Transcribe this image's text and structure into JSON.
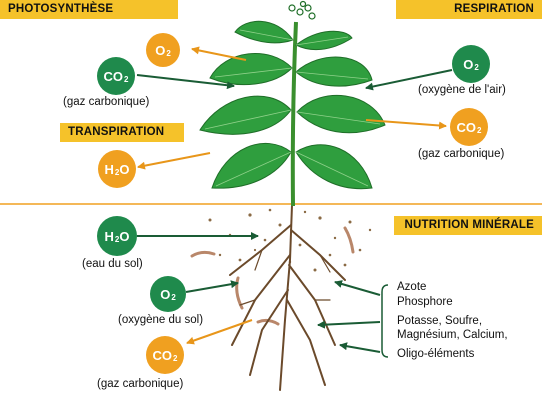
{
  "banners": {
    "photosynthese": "PHOTOSYNTHÈSE",
    "respiration": "RESPIRATION",
    "transpiration": "TRANSPIRATION",
    "nutrition": "NUTRITION MINÉRALE"
  },
  "bubbles": {
    "o2_top": {
      "base": "O",
      "sub": "2"
    },
    "co2_left": {
      "base": "CO",
      "sub": "2"
    },
    "o2_right": {
      "base": "O",
      "sub": "2"
    },
    "co2_right": {
      "base": "CO",
      "sub": "2"
    },
    "h2o_leaf": {
      "base": "H",
      "sub": "2",
      "tail": "O"
    },
    "h2o_soil": {
      "base": "H",
      "sub": "2",
      "tail": "O"
    },
    "o2_soil": {
      "base": "O",
      "sub": "2"
    },
    "co2_soil": {
      "base": "CO",
      "sub": "2"
    }
  },
  "captions": {
    "gaz_carbonique_left": "(gaz carbonique)",
    "oxygene_air": "(oxygène de l'air)",
    "gaz_carbonique_right": "(gaz carbonique)",
    "eau_du_sol": "(eau du sol)",
    "oxygene_sol": "(oxygène du sol)",
    "gaz_carbonique_bottom": "(gaz carbonique)"
  },
  "nutrients": [
    "Azote",
    "Phosphore",
    "Potasse, Soufre,",
    "Magnésium, Calcium,",
    "Oligo-éléments"
  ],
  "colors": {
    "banner": "#f5c22a",
    "green": "#1f8a4c",
    "orange": "#f0a020",
    "leaf": "#2f9e3e",
    "soil_line": "#f0a020",
    "root": "#6b4a2b"
  }
}
